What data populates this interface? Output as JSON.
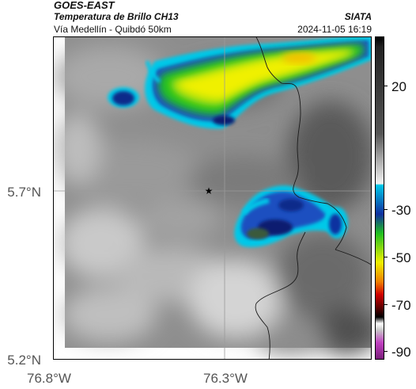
{
  "header": {
    "satellite": "GOES-EAST",
    "product": "Temperatura de Brillo CH13",
    "route": "Vía Medellín - Quibdó 50km",
    "agency": "SIATA",
    "timestamp": "2024-11-05 16:19"
  },
  "map": {
    "lat_labels": [
      "5.7°N",
      "5.2°N"
    ],
    "lon_labels": [
      "76.8°W",
      "76.3°W"
    ],
    "marker": {
      "icon": "star-icon",
      "symbol": "★"
    }
  },
  "colorbar": {
    "tick_labels": [
      "20",
      "-30",
      "-50",
      "-70",
      "-90"
    ],
    "colors": {
      "gray_warm": "#e8e8e8",
      "gray_cold": "#222222",
      "cyan": "#00c8e8",
      "blue": "#1030a0",
      "green": "#20c020",
      "yellow": "#f0f000",
      "orange": "#f08000",
      "red": "#d00000",
      "black": "#000000",
      "magenta": "#c040c0"
    }
  }
}
